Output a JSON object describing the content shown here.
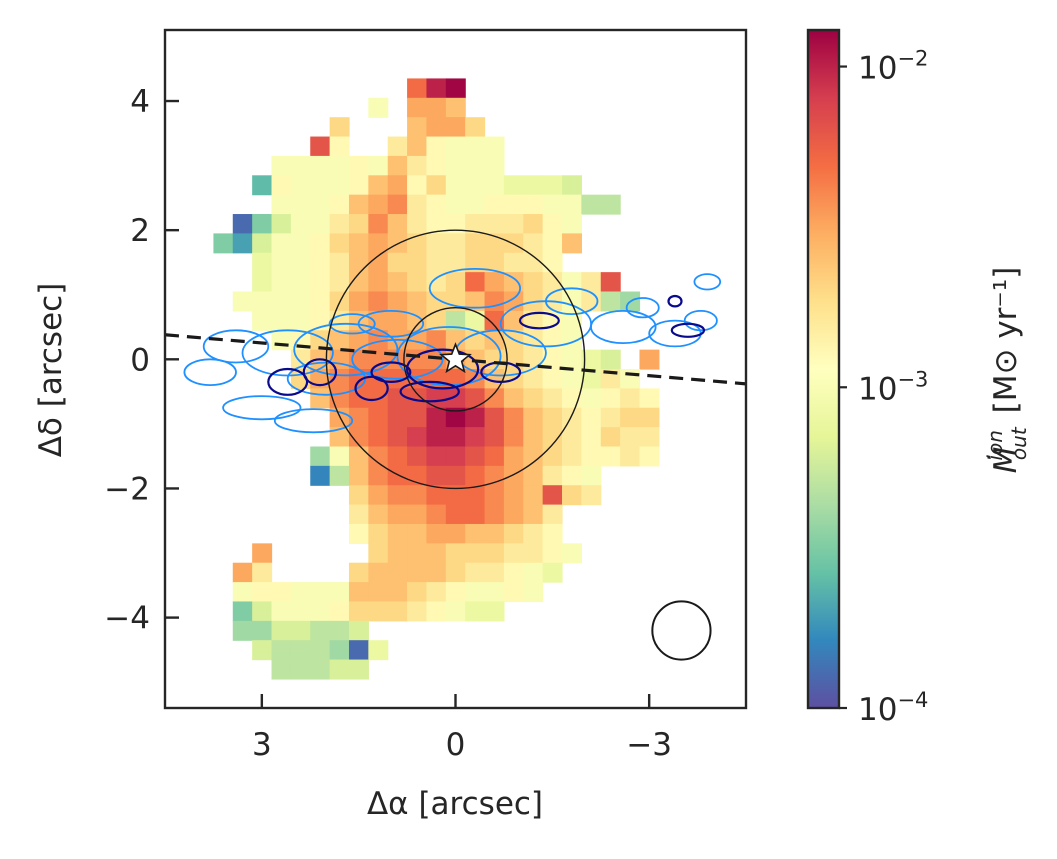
{
  "chart_data": {
    "type": "heatmap",
    "title": "",
    "xlabel": "Δα [arcsec]",
    "ylabel": "Δδ [arcsec]",
    "xlim": [
      4.5,
      -4.5
    ],
    "ylim": [
      -5.4,
      5.1
    ],
    "xticks": [
      {
        "value": 3,
        "label": "3"
      },
      {
        "value": 0,
        "label": "0"
      },
      {
        "value": -3,
        "label": "−3"
      }
    ],
    "yticks": [
      {
        "value": 4,
        "label": "4"
      },
      {
        "value": 2,
        "label": "2"
      },
      {
        "value": 0,
        "label": "0"
      },
      {
        "value": -2,
        "label": "−2"
      },
      {
        "value": -4,
        "label": "−4"
      }
    ],
    "grid": false,
    "pixel_size_arcsec": 0.3,
    "colorbar": {
      "label_main": "Ṁ",
      "label_sup": "ion",
      "label_sub": "out",
      "label_units": "[M⊙ yr⁻¹]",
      "scale": "log",
      "range": [
        0.0001,
        0.013
      ],
      "colormap": "Spectral_r",
      "ticks": [
        {
          "value": 0.0001,
          "base": "10",
          "exp": "−4"
        },
        {
          "value": 0.001,
          "base": "10",
          "exp": "−3"
        },
        {
          "value": 0.01,
          "base": "10",
          "exp": "−2"
        }
      ]
    },
    "log_mdot_by_row": [
      {
        "dec": 4.2,
        "ra": [
          0.6,
          0.3,
          0.0
        ],
        "v": [
          -2.3,
          -2.0,
          -1.9
        ]
      },
      {
        "dec": 3.9,
        "ra": [
          1.2,
          0.6,
          0.3,
          0.0
        ],
        "v": [
          -3.0,
          -2.5,
          -2.5,
          -2.6
        ]
      },
      {
        "dec": 3.6,
        "ra": [
          1.8,
          0.6,
          0.3,
          0.0,
          -0.3
        ],
        "v": [
          -2.7,
          -2.6,
          -2.5,
          -2.5,
          -2.7
        ]
      },
      {
        "dec": 3.3,
        "ra": [
          2.1,
          1.8,
          0.9,
          0.6,
          0.3,
          0.0,
          -0.3,
          -0.6
        ],
        "v": [
          -2.2,
          -2.9,
          -2.8,
          -2.6,
          -2.9,
          -3.0,
          -3.0,
          -3.0
        ]
      },
      {
        "dec": 3.0,
        "ra": [
          2.7,
          2.4,
          2.1,
          1.8,
          1.5,
          1.2,
          0.9,
          0.6,
          0.3,
          0.0,
          -0.3,
          -0.6
        ],
        "v": [
          -3.0,
          -3.0,
          -3.0,
          -3.0,
          -2.9,
          -3.0,
          -2.6,
          -2.8,
          -2.9,
          -3.0,
          -3.0,
          -3.0
        ]
      },
      {
        "dec": 2.7,
        "ra": [
          3.0,
          2.7,
          2.4,
          2.1,
          1.8,
          1.5,
          1.2,
          0.9,
          0.6,
          0.3,
          0.0,
          -0.3,
          -0.6,
          -0.9,
          -1.2,
          -1.5,
          -1.8
        ],
        "v": [
          -3.6,
          -2.9,
          -3.0,
          -3.0,
          -3.0,
          -2.9,
          -2.6,
          -2.5,
          -2.9,
          -2.7,
          -3.0,
          -3.0,
          -3.0,
          -3.1,
          -3.1,
          -3.1,
          -3.2
        ]
      },
      {
        "dec": 2.4,
        "ra": [
          2.7,
          2.4,
          2.1,
          1.8,
          1.5,
          1.2,
          0.9,
          0.6,
          0.3,
          0.0,
          -0.3,
          -0.6,
          -0.9,
          -1.2,
          -1.5,
          -1.8,
          -2.1,
          -2.4
        ],
        "v": [
          -3.0,
          -3.0,
          -3.0,
          -2.9,
          -2.6,
          -2.5,
          -2.4,
          -2.8,
          -2.9,
          -3.0,
          -3.0,
          -2.9,
          -2.9,
          -2.9,
          -3.0,
          -3.0,
          -3.3,
          -3.3
        ]
      },
      {
        "dec": 2.1,
        "ra": [
          3.3,
          3.0,
          2.7,
          2.4,
          2.1,
          1.8,
          1.5,
          1.2,
          0.9,
          0.6,
          0.3,
          0.0,
          -0.3,
          -0.6,
          -0.9,
          -1.2,
          -1.5,
          -1.8
        ],
        "v": [
          -3.9,
          -3.5,
          -3.2,
          -3.0,
          -3.0,
          -2.8,
          -2.7,
          -2.4,
          -2.6,
          -2.8,
          -2.9,
          -2.9,
          -2.8,
          -2.8,
          -2.8,
          -2.7,
          -2.9,
          -3.0
        ]
      },
      {
        "dec": 1.8,
        "ra": [
          3.6,
          3.3,
          3.0,
          2.7,
          2.4,
          2.1,
          1.8,
          1.5,
          1.2,
          0.9,
          0.6,
          0.3,
          0.0,
          -0.3,
          -0.6,
          -0.9,
          -1.2,
          -1.5,
          -1.8
        ],
        "v": [
          -3.5,
          -3.7,
          -3.2,
          -3.0,
          -3.0,
          -2.9,
          -2.7,
          -2.6,
          -2.5,
          -2.6,
          -2.7,
          -2.8,
          -2.8,
          -2.7,
          -2.7,
          -2.7,
          -2.8,
          -2.9,
          -2.6
        ]
      },
      {
        "dec": 1.5,
        "ra": [
          3.0,
          2.7,
          2.4,
          2.1,
          1.8,
          1.5,
          1.2,
          0.9,
          0.6,
          0.3,
          0.0,
          -0.3,
          -0.6,
          -0.9,
          -1.2,
          -1.5
        ],
        "v": [
          -3.1,
          -3.0,
          -3.0,
          -2.9,
          -2.8,
          -2.6,
          -2.5,
          -2.7,
          -2.7,
          -2.8,
          -2.8,
          -2.7,
          -2.7,
          -2.8,
          -2.8,
          -2.9
        ]
      },
      {
        "dec": 1.2,
        "ra": [
          3.0,
          2.7,
          2.4,
          2.1,
          1.8,
          1.5,
          1.2,
          0.9,
          0.6,
          0.3,
          0.0,
          -0.3,
          -0.6,
          -0.9,
          -1.2,
          -1.5,
          -1.8,
          -2.1,
          -2.4
        ],
        "v": [
          -3.1,
          -3.0,
          -3.0,
          -2.9,
          -2.8,
          -2.6,
          -2.5,
          -2.6,
          -2.7,
          -2.8,
          -2.7,
          -2.3,
          -2.5,
          -2.6,
          -2.7,
          -2.8,
          -3.0,
          -2.8,
          -2.2
        ]
      },
      {
        "dec": 0.9,
        "ra": [
          3.3,
          3.0,
          2.7,
          2.4,
          2.1,
          1.8,
          1.5,
          1.2,
          0.9,
          0.6,
          0.3,
          0.0,
          -0.3,
          -0.6,
          -0.9,
          -1.2,
          -1.5,
          -1.8,
          -2.1,
          -2.4,
          -2.7
        ],
        "v": [
          -3.0,
          -3.0,
          -3.0,
          -3.0,
          -2.9,
          -2.7,
          -2.5,
          -2.4,
          -2.5,
          -2.6,
          -2.7,
          -2.7,
          -2.6,
          -2.4,
          -2.5,
          -2.7,
          -2.8,
          -3.0,
          -2.8,
          -3.3,
          -3.4
        ]
      },
      {
        "dec": 0.6,
        "ra": [
          3.0,
          2.7,
          2.4,
          2.1,
          1.8,
          1.5,
          1.2,
          0.9,
          0.6,
          0.3,
          0.0,
          -0.3,
          -0.6,
          -0.9,
          -1.2,
          -1.5,
          -1.8
        ],
        "v": [
          -3.0,
          -3.0,
          -3.0,
          -2.9,
          -2.8,
          -2.6,
          -2.5,
          -2.5,
          -2.6,
          -2.7,
          -3.3,
          -3.1,
          -2.3,
          -2.6,
          -2.8,
          -2.9,
          -3.0
        ]
      },
      {
        "dec": 0.3,
        "ra": [
          2.7,
          2.4,
          2.1,
          1.8,
          1.5,
          1.2,
          0.9,
          0.6,
          0.3,
          0.0,
          -0.3,
          -0.6,
          -0.9,
          -1.2,
          -1.5,
          -1.8
        ],
        "v": [
          -3.0,
          -2.9,
          -2.7,
          -2.6,
          -2.5,
          -2.4,
          -2.5,
          -2.5,
          -2.4,
          -2.6,
          -2.7,
          -2.6,
          -2.7,
          -2.8,
          -2.9,
          -3.0
        ]
      },
      {
        "dec": 0.0,
        "ra": [
          2.4,
          2.1,
          1.8,
          1.5,
          1.2,
          0.9,
          0.6,
          0.3,
          0.0,
          -0.3,
          -0.6,
          -0.9,
          -1.2,
          -1.5,
          -1.8,
          -2.1,
          -2.4,
          -3.0
        ],
        "v": [
          -2.8,
          -2.6,
          -2.5,
          -2.4,
          -2.4,
          -2.4,
          -2.4,
          -2.4,
          -2.5,
          -2.6,
          -2.7,
          -2.7,
          -2.8,
          -2.9,
          -3.0,
          -3.1,
          -3.2,
          -2.5
        ]
      },
      {
        "dec": -0.3,
        "ra": [
          2.4,
          2.1,
          1.8,
          1.5,
          1.2,
          0.9,
          0.6,
          0.3,
          0.0,
          -0.3,
          -0.6,
          -0.9,
          -1.2,
          -1.5,
          -1.8,
          -2.1,
          -2.4,
          -2.7
        ],
        "v": [
          -2.7,
          -2.5,
          -2.4,
          -2.3,
          -2.3,
          -2.3,
          -2.3,
          -2.3,
          -2.3,
          -2.4,
          -2.6,
          -2.7,
          -2.8,
          -2.9,
          -3.0,
          -3.1,
          -2.8,
          -3.0
        ]
      },
      {
        "dec": -0.6,
        "ra": [
          2.1,
          1.8,
          1.5,
          1.2,
          0.9,
          0.6,
          0.3,
          0.0,
          -0.3,
          -0.6,
          -0.9,
          -1.2,
          -1.5,
          -1.8,
          -2.1,
          -2.4,
          -2.7,
          -3.0
        ],
        "v": [
          -2.6,
          -2.4,
          -2.3,
          -2.3,
          -2.2,
          -2.2,
          -2.1,
          -2.1,
          -2.2,
          -2.4,
          -2.6,
          -2.7,
          -2.8,
          -2.9,
          -3.0,
          -2.9,
          -2.8,
          -2.9
        ]
      },
      {
        "dec": -0.9,
        "ra": [
          1.8,
          1.5,
          1.2,
          0.9,
          0.6,
          0.3,
          0.0,
          -0.3,
          -0.6,
          -0.9,
          -1.2,
          -1.5,
          -1.8,
          -2.1,
          -2.4,
          -2.7,
          -3.0
        ],
        "v": [
          -2.5,
          -2.4,
          -2.3,
          -2.2,
          -2.2,
          -2.0,
          -1.9,
          -2.0,
          -2.2,
          -2.4,
          -2.6,
          -2.7,
          -2.8,
          -2.9,
          -2.8,
          -2.7,
          -2.7
        ]
      },
      {
        "dec": -1.2,
        "ra": [
          1.8,
          1.5,
          1.2,
          0.9,
          0.6,
          0.3,
          0.0,
          -0.3,
          -0.6,
          -0.9,
          -1.2,
          -1.5,
          -1.8,
          -2.1,
          -2.4,
          -2.7,
          -3.0
        ],
        "v": [
          -2.6,
          -2.4,
          -2.3,
          -2.2,
          -2.1,
          -2.0,
          -2.0,
          -2.1,
          -2.2,
          -2.4,
          -2.6,
          -2.7,
          -2.8,
          -2.9,
          -2.7,
          -2.8,
          -2.8
        ]
      },
      {
        "dec": -1.5,
        "ra": [
          2.1,
          1.8,
          1.5,
          1.2,
          0.9,
          0.6,
          0.3,
          0.0,
          -0.3,
          -0.6,
          -0.9,
          -1.2,
          -1.5,
          -1.8,
          -2.1,
          -2.4,
          -2.7,
          -3.0
        ],
        "v": [
          -3.4,
          -3.0,
          -2.6,
          -2.4,
          -2.3,
          -2.2,
          -2.1,
          -2.1,
          -2.2,
          -2.3,
          -2.5,
          -2.6,
          -2.7,
          -2.8,
          -2.9,
          -2.9,
          -2.8,
          -2.9
        ]
      },
      {
        "dec": -1.8,
        "ra": [
          2.1,
          1.8,
          1.5,
          1.2,
          0.9,
          0.6,
          0.3,
          0.0,
          -0.3,
          -0.6,
          -0.9,
          -1.2,
          -1.5,
          -1.8,
          -2.1
        ],
        "v": [
          -3.8,
          -3.3,
          -2.6,
          -2.4,
          -2.3,
          -2.3,
          -2.2,
          -2.2,
          -2.3,
          -2.4,
          -2.5,
          -2.6,
          -2.8,
          -2.9,
          -3.0
        ]
      },
      {
        "dec": -2.1,
        "ra": [
          1.5,
          1.2,
          0.9,
          0.6,
          0.3,
          0.0,
          -0.3,
          -0.6,
          -0.9,
          -1.2,
          -1.5,
          -1.8,
          -2.1
        ],
        "v": [
          -2.7,
          -2.5,
          -2.4,
          -2.4,
          -2.3,
          -2.3,
          -2.3,
          -2.4,
          -2.5,
          -2.6,
          -2.2,
          -2.7,
          -2.8
        ]
      },
      {
        "dec": -2.4,
        "ra": [
          1.5,
          1.2,
          0.9,
          0.6,
          0.3,
          0.0,
          -0.3,
          -0.6,
          -0.9,
          -1.2,
          -1.5
        ],
        "v": [
          -2.8,
          -2.6,
          -2.5,
          -2.5,
          -2.4,
          -2.3,
          -2.3,
          -2.4,
          -2.5,
          -2.6,
          -2.8
        ]
      },
      {
        "dec": -2.7,
        "ra": [
          1.5,
          1.2,
          0.9,
          0.6,
          0.3,
          0.0,
          -0.3,
          -0.6,
          -0.9,
          -1.2,
          -1.5
        ],
        "v": [
          -2.9,
          -2.7,
          -2.6,
          -2.6,
          -2.5,
          -2.5,
          -2.6,
          -2.6,
          -2.7,
          -2.8,
          -2.9
        ]
      },
      {
        "dec": -3.0,
        "ra": [
          3.0,
          1.2,
          0.9,
          0.6,
          0.3,
          0.0,
          -0.3,
          -0.6,
          -0.9,
          -1.2,
          -1.5,
          -1.8
        ],
        "v": [
          -2.5,
          -2.7,
          -2.6,
          -2.6,
          -2.6,
          -2.7,
          -2.7,
          -2.7,
          -2.8,
          -2.8,
          -2.9,
          -3.0
        ]
      },
      {
        "dec": -3.3,
        "ra": [
          3.3,
          3.0,
          1.5,
          1.2,
          0.9,
          0.6,
          0.3,
          0.0,
          -0.3,
          -0.6,
          -0.9,
          -1.2,
          -1.5
        ],
        "v": [
          -2.5,
          -2.8,
          -2.7,
          -2.6,
          -2.6,
          -2.6,
          -2.6,
          -2.7,
          -2.8,
          -2.8,
          -2.9,
          -3.0,
          -3.1
        ]
      },
      {
        "dec": -3.6,
        "ra": [
          3.3,
          3.0,
          2.7,
          2.4,
          2.1,
          1.8,
          1.5,
          1.2,
          0.9,
          0.6,
          0.3,
          0.0,
          -0.3,
          -0.6,
          -0.9,
          -1.2
        ],
        "v": [
          -3.0,
          -2.9,
          -2.9,
          -3.0,
          -3.0,
          -3.0,
          -2.6,
          -2.6,
          -2.6,
          -2.7,
          -2.8,
          -2.9,
          -3.0,
          -3.0,
          -2.9,
          -3.0
        ]
      },
      {
        "dec": -3.9,
        "ra": [
          3.3,
          3.0,
          2.7,
          2.4,
          2.1,
          1.8,
          1.5,
          1.2,
          0.9,
          0.6,
          0.3,
          0.0,
          -0.3,
          -0.6
        ],
        "v": [
          -3.5,
          -3.2,
          -3.0,
          -3.0,
          -3.0,
          -2.9,
          -2.7,
          -2.7,
          -2.7,
          -2.8,
          -2.9,
          -3.0,
          -3.1,
          -3.1
        ]
      },
      {
        "dec": -4.2,
        "ra": [
          3.3,
          3.0,
          2.7,
          2.4,
          2.1,
          1.8,
          1.5
        ],
        "v": [
          -3.4,
          -3.4,
          -3.2,
          -3.2,
          -3.3,
          -3.3,
          -3.2
        ]
      },
      {
        "dec": -4.5,
        "ra": [
          3.0,
          2.7,
          2.4,
          2.1,
          1.8,
          1.5,
          1.2
        ],
        "v": [
          -3.2,
          -3.3,
          -3.3,
          -3.3,
          -3.4,
          -3.9,
          -3.1
        ]
      },
      {
        "dec": -4.8,
        "ra": [
          2.7,
          2.4,
          2.1,
          1.8,
          1.5
        ],
        "v": [
          -3.3,
          -3.3,
          -3.3,
          -3.2,
          -3.2
        ]
      }
    ],
    "overlays": {
      "major_axis_line": {
        "from": [
          4.5,
          0.38
        ],
        "to": [
          -4.5,
          -0.38
        ],
        "color": "#1a1a1a",
        "style": "dashed"
      },
      "circles": [
        {
          "center": [
            0,
            0
          ],
          "radius": 2.0,
          "color": "#1a1a1a"
        },
        {
          "center": [
            0,
            0
          ],
          "radius": 0.8,
          "color": "#1a1a1a"
        }
      ],
      "beam": {
        "center": [
          -3.5,
          -4.2
        ],
        "radius": 0.45,
        "color": "#1a1a1a"
      },
      "nucleus_marker": {
        "position": [
          0,
          0
        ],
        "symbol": "star"
      },
      "contour_outer_color": "#1e90ff",
      "contour_inner_color": "#0a0a8c"
    }
  }
}
